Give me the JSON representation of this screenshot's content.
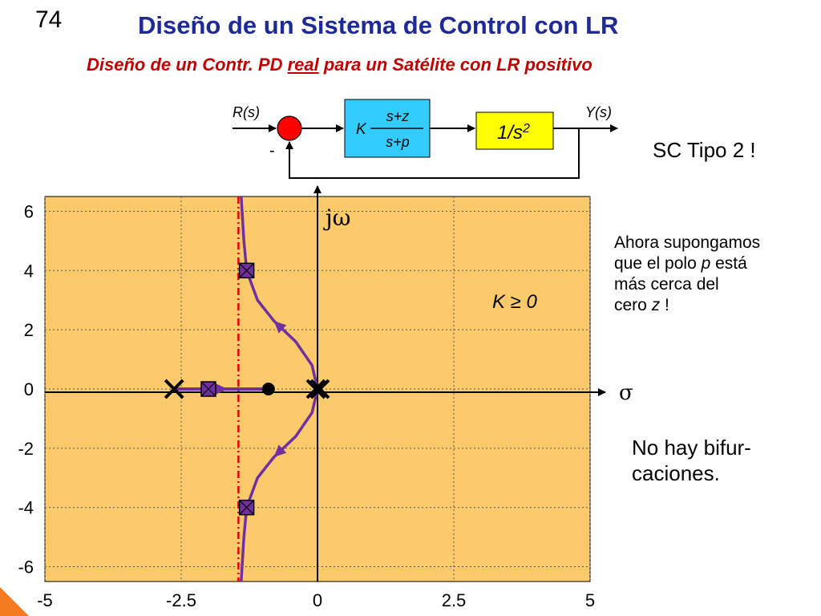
{
  "slide": {
    "number": "74",
    "title": "Diseño de un Sistema de Control con LR",
    "subtitle_pre": "Diseño de un Contr. PD ",
    "subtitle_underlined": "real",
    "subtitle_post": " para un Satélite con LR positivo"
  },
  "block_diagram": {
    "input_label": "R(s)",
    "output_label": "Y(s)",
    "feedback_sign": "-",
    "controller_gain": "K",
    "controller_numerator": "s+z",
    "controller_denominator": "s+p",
    "plant": "1/s",
    "plant_exponent": "2",
    "colors": {
      "summing_junction": "#ff0000",
      "controller": "#33ccff",
      "plant": "#ffff00"
    }
  },
  "notes": {
    "system_type": "SC Tipo 2 !",
    "assumption": {
      "line1": "Ahora supongamos",
      "line2_pre": "que el polo ",
      "line2_var": "p",
      "line2_post": " está",
      "line3": "más cerca del",
      "line4_pre": "cero ",
      "line4_var": "z",
      "line4_post": " !"
    },
    "bifurcation_line1": "No hay bifur-",
    "bifurcation_line2": "caciones."
  },
  "chart_data": {
    "type": "root-locus",
    "xlim": [
      -5,
      5
    ],
    "ylim": [
      -6.5,
      6.5
    ],
    "x_ticks": [
      {
        "value": -5,
        "label": "-5"
      },
      {
        "value": -2.5,
        "label": "-2.5"
      },
      {
        "value": 0,
        "label": "0"
      },
      {
        "value": 2.5,
        "label": "2.5"
      },
      {
        "value": 5,
        "label": "5"
      }
    ],
    "y_ticks": [
      {
        "value": 6,
        "label": "6"
      },
      {
        "value": 4,
        "label": "4"
      },
      {
        "value": 2,
        "label": "2"
      },
      {
        "value": 0,
        "label": "0"
      },
      {
        "value": -2,
        "label": "-2"
      },
      {
        "value": -4,
        "label": "-4"
      },
      {
        "value": -6,
        "label": "-6"
      }
    ],
    "grid": true,
    "imag_axis_label": "jω",
    "real_axis_label": "σ",
    "gain_label": "K ≥ 0",
    "asymptote_real": -1.45,
    "open_loop_poles": [
      {
        "re": -2.6,
        "im": 0
      },
      {
        "re": 0,
        "im": 0
      },
      {
        "re": 0,
        "im": 0
      }
    ],
    "open_loop_zeros": [
      {
        "re": -0.9,
        "im": 0
      }
    ],
    "marked_closed_loop_poles": [
      {
        "re": -2.0,
        "im": 0
      },
      {
        "re": -1.3,
        "im": 4.0
      },
      {
        "re": -1.3,
        "im": -4.0
      }
    ],
    "real_axis_segment": {
      "from": -2.6,
      "to": -0.9
    },
    "upper_branch": [
      {
        "re": 0,
        "im": 0
      },
      {
        "re": -0.1,
        "im": 0.8
      },
      {
        "re": -0.4,
        "im": 1.6
      },
      {
        "re": -0.8,
        "im": 2.3
      },
      {
        "re": -1.1,
        "im": 3.0
      },
      {
        "re": -1.3,
        "im": 4.0
      },
      {
        "re": -1.35,
        "im": 5.0
      },
      {
        "re": -1.4,
        "im": 6.5
      }
    ],
    "lower_branch": [
      {
        "re": 0,
        "im": 0
      },
      {
        "re": -0.1,
        "im": -0.8
      },
      {
        "re": -0.4,
        "im": -1.6
      },
      {
        "re": -0.8,
        "im": -2.3
      },
      {
        "re": -1.1,
        "im": -3.0
      },
      {
        "re": -1.3,
        "im": -4.0
      },
      {
        "re": -1.35,
        "im": -5.0
      },
      {
        "re": -1.4,
        "im": -6.5
      }
    ],
    "colors": {
      "plot_background": "#fcca6b",
      "locus": "#7030a0",
      "asymptote": "#e00000"
    }
  }
}
